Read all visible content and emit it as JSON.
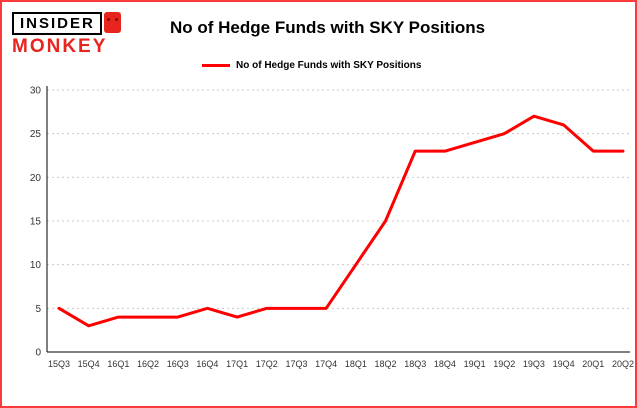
{
  "branding": {
    "logo_top": "INSIDER",
    "logo_bottom": "MONKEY"
  },
  "header": {
    "title": "No of Hedge Funds with SKY Positions"
  },
  "legend": {
    "label": "No of Hedge Funds with SKY Positions"
  },
  "colors": {
    "line": "#fe0000",
    "border": "#fb3b3b",
    "accent": "#e8241f",
    "grid": "#c9c9c9",
    "axis": "#000000",
    "tick_text": "#333333"
  },
  "chart_data": {
    "type": "line",
    "title": "No of Hedge Funds with SKY Positions",
    "categories": [
      "15Q3",
      "15Q4",
      "16Q1",
      "16Q2",
      "16Q3",
      "16Q4",
      "17Q1",
      "17Q2",
      "17Q3",
      "17Q4",
      "18Q1",
      "18Q2",
      "18Q3",
      "18Q4",
      "19Q1",
      "19Q2",
      "19Q3",
      "19Q4",
      "20Q1",
      "20Q2"
    ],
    "series": [
      {
        "name": "No of Hedge Funds with SKY Positions",
        "values": [
          5,
          3,
          4,
          4,
          4,
          5,
          4,
          5,
          5,
          5,
          10,
          15,
          23,
          23,
          24,
          25,
          27,
          26,
          23,
          23
        ]
      }
    ],
    "xlabel": "",
    "ylabel": "",
    "ylim": [
      0,
      30
    ],
    "yticks": [
      0,
      5,
      10,
      15,
      20,
      25,
      30
    ],
    "grid": true,
    "legend_position": "top"
  }
}
